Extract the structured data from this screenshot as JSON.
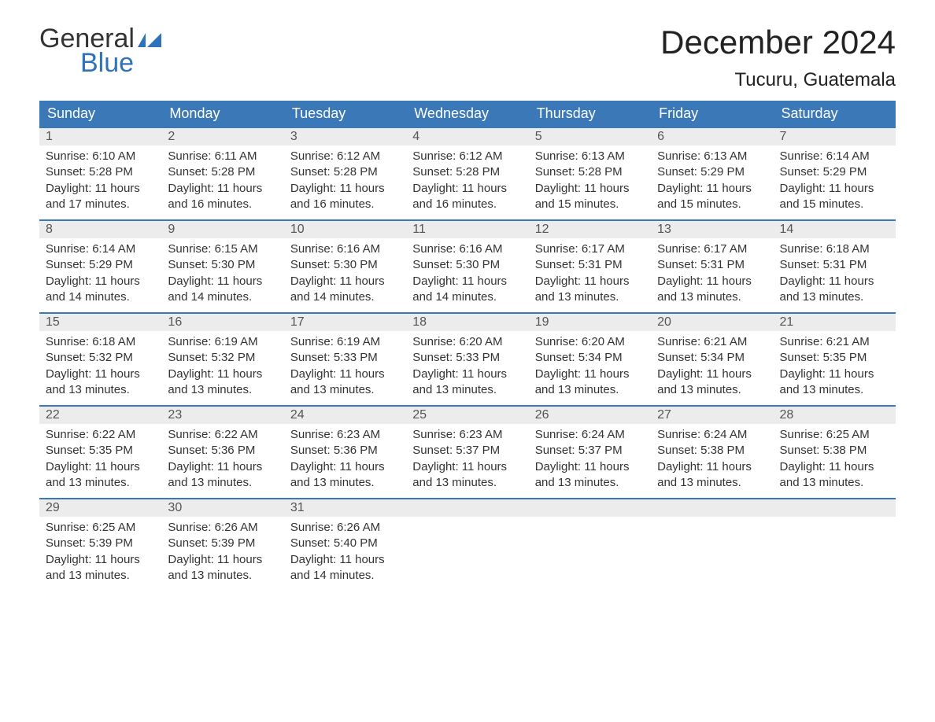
{
  "logo": {
    "text1": "General",
    "text2": "Blue",
    "accent_color": "#2f72b9"
  },
  "header": {
    "month_title": "December 2024",
    "location": "Tucuru, Guatemala"
  },
  "colors": {
    "header_bg": "#3b78b8",
    "header_text": "#ffffff",
    "daybar_bg": "#ececec",
    "daybar_border": "#3b78b8",
    "body_text": "#333333",
    "page_bg": "#ffffff"
  },
  "weekdays": [
    "Sunday",
    "Monday",
    "Tuesday",
    "Wednesday",
    "Thursday",
    "Friday",
    "Saturday"
  ],
  "weeks": [
    [
      {
        "day": "1",
        "sunrise": "Sunrise: 6:10 AM",
        "sunset": "Sunset: 5:28 PM",
        "daylight1": "Daylight: 11 hours",
        "daylight2": "and 17 minutes."
      },
      {
        "day": "2",
        "sunrise": "Sunrise: 6:11 AM",
        "sunset": "Sunset: 5:28 PM",
        "daylight1": "Daylight: 11 hours",
        "daylight2": "and 16 minutes."
      },
      {
        "day": "3",
        "sunrise": "Sunrise: 6:12 AM",
        "sunset": "Sunset: 5:28 PM",
        "daylight1": "Daylight: 11 hours",
        "daylight2": "and 16 minutes."
      },
      {
        "day": "4",
        "sunrise": "Sunrise: 6:12 AM",
        "sunset": "Sunset: 5:28 PM",
        "daylight1": "Daylight: 11 hours",
        "daylight2": "and 16 minutes."
      },
      {
        "day": "5",
        "sunrise": "Sunrise: 6:13 AM",
        "sunset": "Sunset: 5:28 PM",
        "daylight1": "Daylight: 11 hours",
        "daylight2": "and 15 minutes."
      },
      {
        "day": "6",
        "sunrise": "Sunrise: 6:13 AM",
        "sunset": "Sunset: 5:29 PM",
        "daylight1": "Daylight: 11 hours",
        "daylight2": "and 15 minutes."
      },
      {
        "day": "7",
        "sunrise": "Sunrise: 6:14 AM",
        "sunset": "Sunset: 5:29 PM",
        "daylight1": "Daylight: 11 hours",
        "daylight2": "and 15 minutes."
      }
    ],
    [
      {
        "day": "8",
        "sunrise": "Sunrise: 6:14 AM",
        "sunset": "Sunset: 5:29 PM",
        "daylight1": "Daylight: 11 hours",
        "daylight2": "and 14 minutes."
      },
      {
        "day": "9",
        "sunrise": "Sunrise: 6:15 AM",
        "sunset": "Sunset: 5:30 PM",
        "daylight1": "Daylight: 11 hours",
        "daylight2": "and 14 minutes."
      },
      {
        "day": "10",
        "sunrise": "Sunrise: 6:16 AM",
        "sunset": "Sunset: 5:30 PM",
        "daylight1": "Daylight: 11 hours",
        "daylight2": "and 14 minutes."
      },
      {
        "day": "11",
        "sunrise": "Sunrise: 6:16 AM",
        "sunset": "Sunset: 5:30 PM",
        "daylight1": "Daylight: 11 hours",
        "daylight2": "and 14 minutes."
      },
      {
        "day": "12",
        "sunrise": "Sunrise: 6:17 AM",
        "sunset": "Sunset: 5:31 PM",
        "daylight1": "Daylight: 11 hours",
        "daylight2": "and 13 minutes."
      },
      {
        "day": "13",
        "sunrise": "Sunrise: 6:17 AM",
        "sunset": "Sunset: 5:31 PM",
        "daylight1": "Daylight: 11 hours",
        "daylight2": "and 13 minutes."
      },
      {
        "day": "14",
        "sunrise": "Sunrise: 6:18 AM",
        "sunset": "Sunset: 5:31 PM",
        "daylight1": "Daylight: 11 hours",
        "daylight2": "and 13 minutes."
      }
    ],
    [
      {
        "day": "15",
        "sunrise": "Sunrise: 6:18 AM",
        "sunset": "Sunset: 5:32 PM",
        "daylight1": "Daylight: 11 hours",
        "daylight2": "and 13 minutes."
      },
      {
        "day": "16",
        "sunrise": "Sunrise: 6:19 AM",
        "sunset": "Sunset: 5:32 PM",
        "daylight1": "Daylight: 11 hours",
        "daylight2": "and 13 minutes."
      },
      {
        "day": "17",
        "sunrise": "Sunrise: 6:19 AM",
        "sunset": "Sunset: 5:33 PM",
        "daylight1": "Daylight: 11 hours",
        "daylight2": "and 13 minutes."
      },
      {
        "day": "18",
        "sunrise": "Sunrise: 6:20 AM",
        "sunset": "Sunset: 5:33 PM",
        "daylight1": "Daylight: 11 hours",
        "daylight2": "and 13 minutes."
      },
      {
        "day": "19",
        "sunrise": "Sunrise: 6:20 AM",
        "sunset": "Sunset: 5:34 PM",
        "daylight1": "Daylight: 11 hours",
        "daylight2": "and 13 minutes."
      },
      {
        "day": "20",
        "sunrise": "Sunrise: 6:21 AM",
        "sunset": "Sunset: 5:34 PM",
        "daylight1": "Daylight: 11 hours",
        "daylight2": "and 13 minutes."
      },
      {
        "day": "21",
        "sunrise": "Sunrise: 6:21 AM",
        "sunset": "Sunset: 5:35 PM",
        "daylight1": "Daylight: 11 hours",
        "daylight2": "and 13 minutes."
      }
    ],
    [
      {
        "day": "22",
        "sunrise": "Sunrise: 6:22 AM",
        "sunset": "Sunset: 5:35 PM",
        "daylight1": "Daylight: 11 hours",
        "daylight2": "and 13 minutes."
      },
      {
        "day": "23",
        "sunrise": "Sunrise: 6:22 AM",
        "sunset": "Sunset: 5:36 PM",
        "daylight1": "Daylight: 11 hours",
        "daylight2": "and 13 minutes."
      },
      {
        "day": "24",
        "sunrise": "Sunrise: 6:23 AM",
        "sunset": "Sunset: 5:36 PM",
        "daylight1": "Daylight: 11 hours",
        "daylight2": "and 13 minutes."
      },
      {
        "day": "25",
        "sunrise": "Sunrise: 6:23 AM",
        "sunset": "Sunset: 5:37 PM",
        "daylight1": "Daylight: 11 hours",
        "daylight2": "and 13 minutes."
      },
      {
        "day": "26",
        "sunrise": "Sunrise: 6:24 AM",
        "sunset": "Sunset: 5:37 PM",
        "daylight1": "Daylight: 11 hours",
        "daylight2": "and 13 minutes."
      },
      {
        "day": "27",
        "sunrise": "Sunrise: 6:24 AM",
        "sunset": "Sunset: 5:38 PM",
        "daylight1": "Daylight: 11 hours",
        "daylight2": "and 13 minutes."
      },
      {
        "day": "28",
        "sunrise": "Sunrise: 6:25 AM",
        "sunset": "Sunset: 5:38 PM",
        "daylight1": "Daylight: 11 hours",
        "daylight2": "and 13 minutes."
      }
    ],
    [
      {
        "day": "29",
        "sunrise": "Sunrise: 6:25 AM",
        "sunset": "Sunset: 5:39 PM",
        "daylight1": "Daylight: 11 hours",
        "daylight2": "and 13 minutes."
      },
      {
        "day": "30",
        "sunrise": "Sunrise: 6:26 AM",
        "sunset": "Sunset: 5:39 PM",
        "daylight1": "Daylight: 11 hours",
        "daylight2": "and 13 minutes."
      },
      {
        "day": "31",
        "sunrise": "Sunrise: 6:26 AM",
        "sunset": "Sunset: 5:40 PM",
        "daylight1": "Daylight: 11 hours",
        "daylight2": "and 14 minutes."
      },
      null,
      null,
      null,
      null
    ]
  ]
}
